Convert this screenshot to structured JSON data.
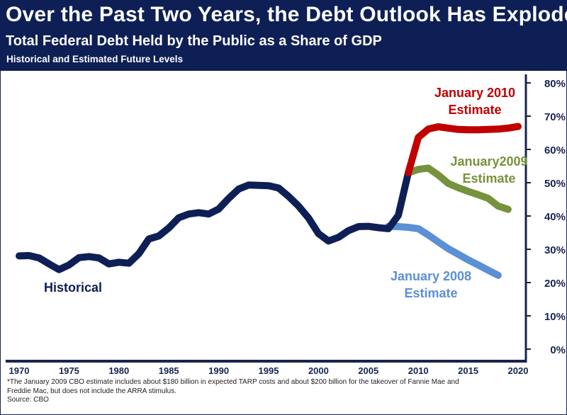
{
  "header": {
    "title": "Over the Past Two Years, the Debt Outlook Has Exploded",
    "subtitle": "Total Federal Debt Held by the Public as a Share of GDP",
    "subtitle2": "Historical and Estimated Future Levels"
  },
  "footnote": {
    "line1": "*The January 2009 CBO estimate includes about $180 billion in expected  TARP costs and about $200 billion for the takeover of Fannie Mae and",
    "line2": "Freddie Mac, but does not include the ARRA stimulus.",
    "source": "Source: CBO"
  },
  "colors": {
    "header_bg": "#0e1f56",
    "historical": "#0e1f56",
    "jan2010": "#c00000",
    "jan2009": "#76923c",
    "jan2008": "#5b8fd6"
  },
  "chart_data": {
    "type": "line",
    "title": "Over the Past Two Years, the Debt Outlook Has Exploded",
    "subtitle": "Total Federal Debt Held by the Public as a Share of GDP",
    "xlim": [
      1970,
      2020
    ],
    "ylim": [
      0,
      80
    ],
    "x_ticks": [
      1970,
      1975,
      1980,
      1985,
      1990,
      1995,
      2000,
      2005,
      2010,
      2015,
      2020
    ],
    "y_ticks": [
      "0%",
      "10%",
      "20%",
      "30%",
      "40%",
      "50%",
      "60%",
      "70%",
      "80%"
    ],
    "y_tick_values": [
      0,
      10,
      20,
      30,
      40,
      50,
      60,
      70,
      80
    ],
    "y_axis_side": "right",
    "grid": false,
    "series": [
      {
        "name": "Historical",
        "label_lines": [
          "Historical"
        ],
        "color": "#0e1f56",
        "x": [
          1970,
          1971,
          1972,
          1973,
          1974,
          1975,
          1976,
          1977,
          1978,
          1979,
          1980,
          1981,
          1982,
          1983,
          1984,
          1985,
          1986,
          1987,
          1988,
          1989,
          1990,
          1991,
          1992,
          1993,
          1994,
          1995,
          1996,
          1997,
          1998,
          1999,
          2000,
          2001,
          2002,
          2003,
          2004,
          2005,
          2006,
          2007,
          2008,
          2009
        ],
        "y": [
          28.0,
          28.1,
          27.4,
          25.6,
          23.9,
          25.3,
          27.5,
          27.8,
          27.4,
          25.6,
          26.1,
          25.8,
          28.7,
          33.1,
          34.0,
          36.4,
          39.5,
          40.6,
          41.0,
          40.6,
          42.1,
          45.3,
          48.1,
          49.3,
          49.2,
          49.1,
          48.4,
          45.9,
          43.0,
          39.4,
          34.7,
          32.5,
          33.6,
          35.6,
          36.8,
          36.9,
          36.5,
          36.2,
          40.2,
          53.0
        ]
      },
      {
        "name": "January 2010 Estimate",
        "label_lines": [
          "January 2010",
          "Estimate"
        ],
        "color": "#c00000",
        "x": [
          2009,
          2010,
          2011,
          2012,
          2013,
          2014,
          2015,
          2016,
          2017,
          2018,
          2019,
          2020
        ],
        "y": [
          53.0,
          63.6,
          66.1,
          66.8,
          66.4,
          66.0,
          65.9,
          65.9,
          66.0,
          66.1,
          66.4,
          66.9
        ]
      },
      {
        "name": "January2009 Estimate",
        "label_lines": [
          "January2009",
          "Estimate"
        ],
        "color": "#76923c",
        "x": [
          2009,
          2010,
          2011,
          2012,
          2013,
          2014,
          2015,
          2016,
          2017,
          2018,
          2019
        ],
        "y": [
          53.0,
          54.0,
          54.4,
          52.3,
          49.8,
          48.5,
          47.4,
          46.4,
          45.3,
          43.0,
          42.0
        ]
      },
      {
        "name": "January 2008 Estimate",
        "label_lines": [
          "January 2008",
          "Estimate"
        ],
        "color": "#5b8fd6",
        "x": [
          2007,
          2008,
          2009,
          2010,
          2011,
          2012,
          2013,
          2014,
          2015,
          2016,
          2017,
          2018
        ],
        "y": [
          36.9,
          36.8,
          36.6,
          36.2,
          34.3,
          32.2,
          30.2,
          28.5,
          26.8,
          25.3,
          23.7,
          22.2
        ]
      }
    ]
  }
}
